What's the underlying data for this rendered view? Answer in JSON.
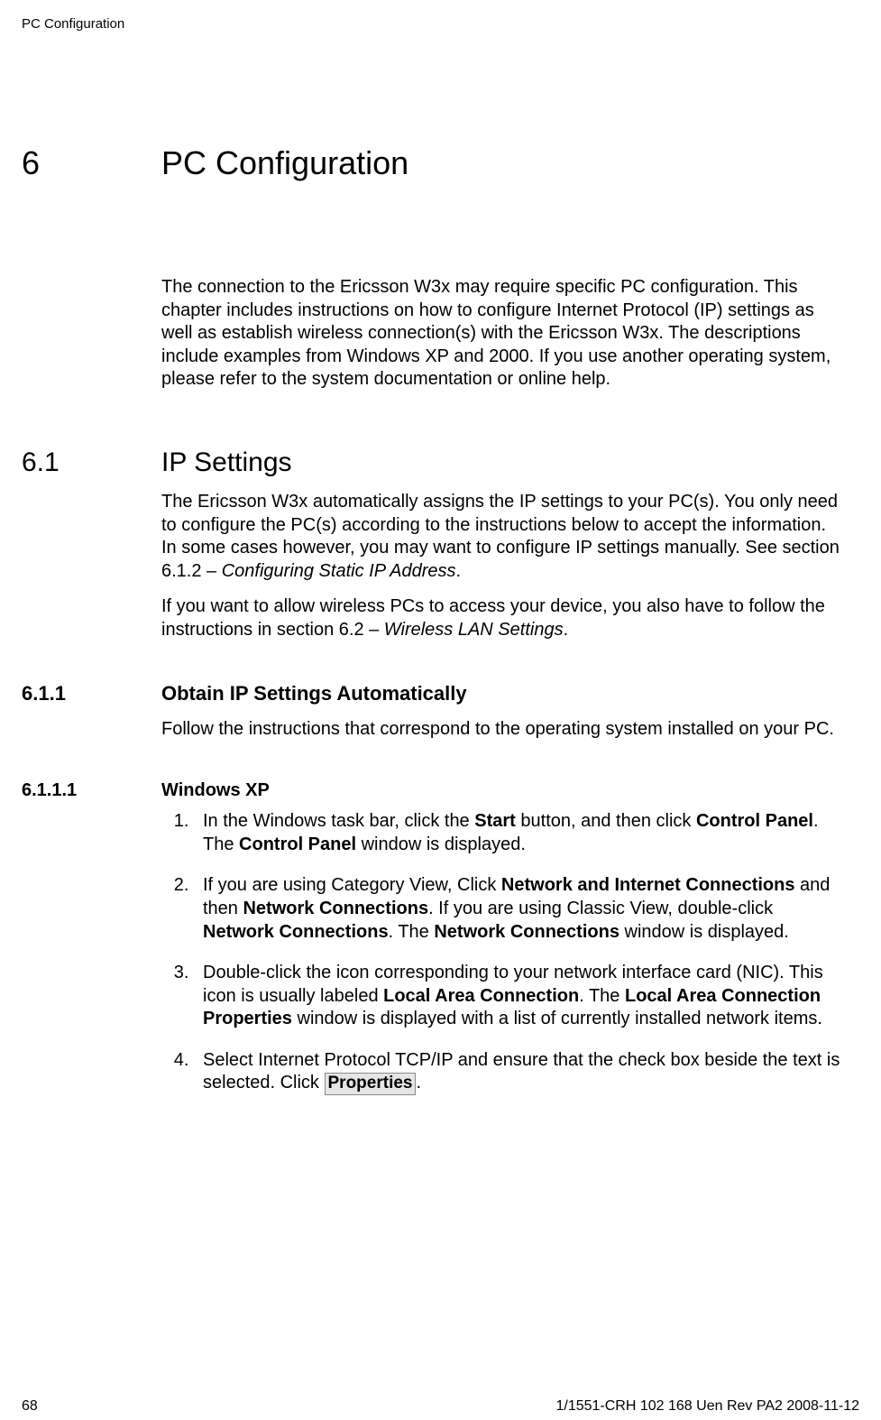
{
  "header": {
    "running": "PC Configuration"
  },
  "chapter": {
    "number": "6",
    "title": "PC Configuration",
    "intro": "The connection to the Ericsson W3x may require specific PC configuration. This chapter includes instructions on how to configure Internet Protocol (IP) settings as well as establish wireless connection(s) with the Ericsson W3x. The descriptions include examples from Windows XP and 2000. If you use another operating system, please refer to the system documentation or online help."
  },
  "section_6_1": {
    "number": "6.1",
    "title": "IP Settings",
    "p1_a": "The Ericsson W3x automatically assigns the IP settings to your PC(s). You only need to configure the PC(s) according to the instructions below to accept the information. In some cases however, you may want to configure IP settings manually. See section 6.1.2 – ",
    "p1_i": "Configuring Static IP Address",
    "p1_b": ".",
    "p2_a": "If you want to allow wireless PCs to access your device, you also have to follow the instructions in section 6.2 – ",
    "p2_i": "Wireless LAN Settings",
    "p2_b": "."
  },
  "section_6_1_1": {
    "number": "6.1.1",
    "title": "Obtain IP Settings Automatically",
    "p1": "Follow the instructions that correspond to the operating system installed on your PC."
  },
  "section_6_1_1_1": {
    "number": "6.1.1.1",
    "title": "Windows XP",
    "step1_a": "In the Windows task bar, click the ",
    "step1_b1": "Start",
    "step1_c": " button, and then click ",
    "step1_b2": "Control Panel",
    "step1_d": ". The ",
    "step1_b3": "Control Panel",
    "step1_e": " window is displayed.",
    "step2_a": "If you are using Category View, Click ",
    "step2_b1": "Network and Internet Connections",
    "step2_c": " and then ",
    "step2_b2": "Network Connections",
    "step2_d": ". If you are using Classic View, double-click ",
    "step2_b3": "Network Connections",
    "step2_e": ". The ",
    "step2_b4": "Network Connections",
    "step2_f": " window is displayed.",
    "step3_a": "Double-click the icon corresponding to your network interface card (NIC). This icon is usually labeled ",
    "step3_b1": "Local Area Connection",
    "step3_c": ". The ",
    "step3_b2": "Local Area Connection Properties",
    "step3_d": " window is displayed with a list of currently installed network items.",
    "step4_a": "Select Internet Protocol TCP/IP and ensure that the check box beside the text is selected. Click ",
    "step4_btn": "Properties",
    "step4_b": "."
  },
  "footer": {
    "page": "68",
    "docid": "1/1551-CRH 102 168 Uen Rev PA2  2008-11-12"
  }
}
